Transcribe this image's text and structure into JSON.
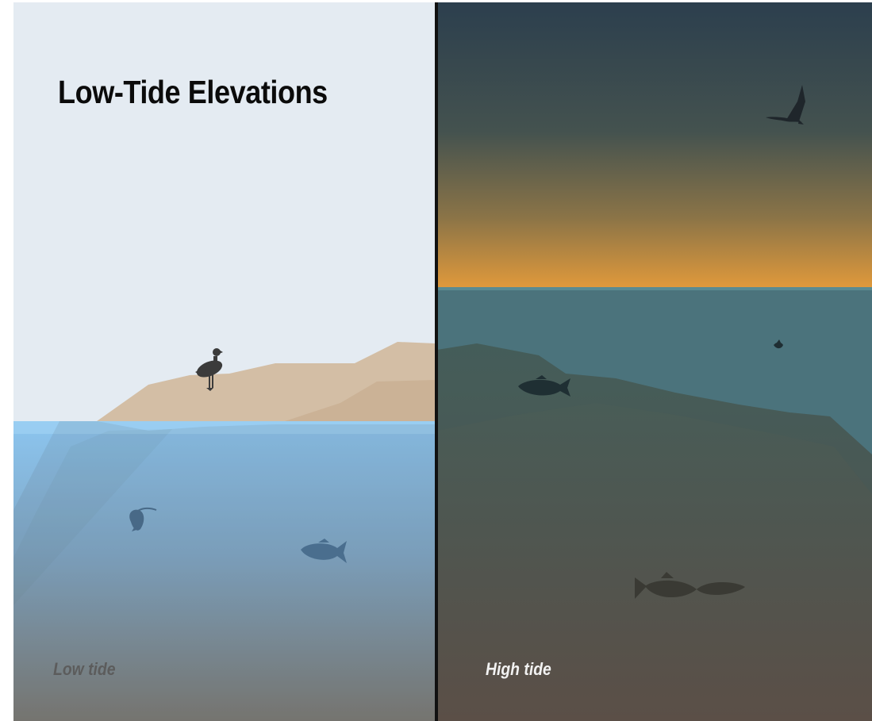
{
  "title": "Low-Tide Elevations",
  "panels": {
    "left": {
      "label": "Low tide"
    },
    "right": {
      "label": "High tide"
    }
  },
  "colors": {
    "low_sky": "#e4ebf2",
    "low_land": "#d3bea5",
    "low_water_top": "#8cc5ef",
    "low_water_bottom": "#7a766e",
    "high_sky_top": "#2c3f4e",
    "high_horizon": "#e0993b",
    "high_water": "#4b737c",
    "high_seabed_bottom": "#5b4f47",
    "divider": "#111111"
  },
  "icons": [
    "bird-standing-icon",
    "fish-icon",
    "anglerfish-icon",
    "bird-flying-icon",
    "small-fish-icon"
  ]
}
